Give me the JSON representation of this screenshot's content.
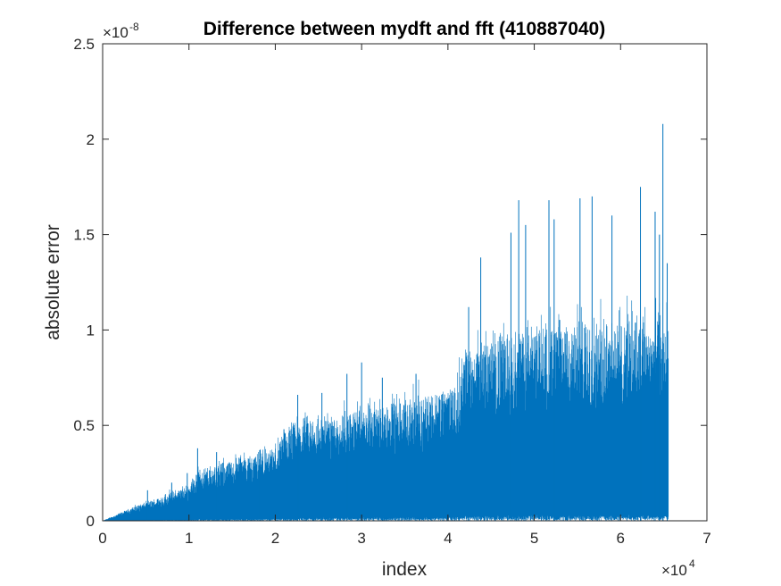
{
  "chart_data": {
    "type": "line",
    "title": "Difference between mydft and fft (410887040)",
    "xlabel": "index",
    "ylabel": "absolute error",
    "xlim": [
      0,
      70000
    ],
    "ylim": [
      0,
      2.5e-08
    ],
    "x_exponent_label": "×10",
    "x_exponent_power": "4",
    "y_exponent_label": "×10",
    "y_exponent_power": "-8",
    "x_ticks": [
      {
        "value": 0,
        "label": "0"
      },
      {
        "value": 10000,
        "label": "1"
      },
      {
        "value": 20000,
        "label": "2"
      },
      {
        "value": 30000,
        "label": "3"
      },
      {
        "value": 40000,
        "label": "4"
      },
      {
        "value": 50000,
        "label": "5"
      },
      {
        "value": 60000,
        "label": "6"
      },
      {
        "value": 70000,
        "label": "7"
      }
    ],
    "y_ticks": [
      {
        "value": 0,
        "label": "0"
      },
      {
        "value": 5e-09,
        "label": "0.5"
      },
      {
        "value": 1e-08,
        "label": "1"
      },
      {
        "value": 1.5e-08,
        "label": "1.5"
      },
      {
        "value": 2e-08,
        "label": "2"
      },
      {
        "value": 2.5e-08,
        "label": "2.5"
      }
    ],
    "series": [
      {
        "name": "absolute error",
        "color": "#0072bd",
        "x_start": 0,
        "x_end": 65536,
        "envelope_x": [
          0,
          2000,
          4000,
          6000,
          8000,
          10000,
          11000,
          14000,
          18000,
          20000,
          22000,
          26000,
          30000,
          34000,
          38000,
          41000,
          42000,
          46000,
          50000,
          54000,
          58000,
          62000,
          64000,
          65536
        ],
        "envelope_y": [
          0,
          4e-10,
          8e-10,
          1.1e-09,
          1.5e-09,
          1.8e-09,
          2.6e-09,
          3e-09,
          3.5e-09,
          3.8e-09,
          5e-09,
          5.4e-09,
          5.8e-09,
          6.2e-09,
          6.6e-09,
          7e-09,
          9e-09,
          9.5e-09,
          1e-08,
          1.02e-08,
          1.03e-08,
          1.05e-08,
          1.05e-08,
          1.05e-08
        ],
        "peaks": [
          {
            "x": 5200,
            "y": 1.6e-09
          },
          {
            "x": 8000,
            "y": 2e-09
          },
          {
            "x": 9800,
            "y": 2.5e-09
          },
          {
            "x": 11000,
            "y": 3.8e-09
          },
          {
            "x": 13200,
            "y": 3.6e-09
          },
          {
            "x": 15800,
            "y": 3.3e-09
          },
          {
            "x": 18200,
            "y": 3.7e-09
          },
          {
            "x": 21000,
            "y": 4.8e-09
          },
          {
            "x": 22600,
            "y": 6.6e-09
          },
          {
            "x": 25400,
            "y": 6.7e-09
          },
          {
            "x": 28300,
            "y": 7.7e-09
          },
          {
            "x": 30000,
            "y": 8.3e-09
          },
          {
            "x": 32400,
            "y": 7.5e-09
          },
          {
            "x": 36300,
            "y": 7.7e-09
          },
          {
            "x": 40500,
            "y": 6.8e-09
          },
          {
            "x": 42400,
            "y": 1.12e-08
          },
          {
            "x": 43800,
            "y": 1.38e-08
          },
          {
            "x": 47300,
            "y": 1.51e-08
          },
          {
            "x": 48200,
            "y": 1.68e-08
          },
          {
            "x": 49000,
            "y": 1.55e-08
          },
          {
            "x": 51700,
            "y": 1.68e-08
          },
          {
            "x": 52300,
            "y": 1.58e-08
          },
          {
            "x": 55300,
            "y": 1.69e-08
          },
          {
            "x": 56700,
            "y": 1.7e-08
          },
          {
            "x": 59000,
            "y": 1.6e-08
          },
          {
            "x": 62300,
            "y": 1.75e-08
          },
          {
            "x": 64000,
            "y": 1.62e-08
          },
          {
            "x": 64500,
            "y": 1.5e-08
          },
          {
            "x": 64900,
            "y": 2.08e-08
          },
          {
            "x": 65400,
            "y": 1.35e-08
          }
        ]
      }
    ]
  }
}
